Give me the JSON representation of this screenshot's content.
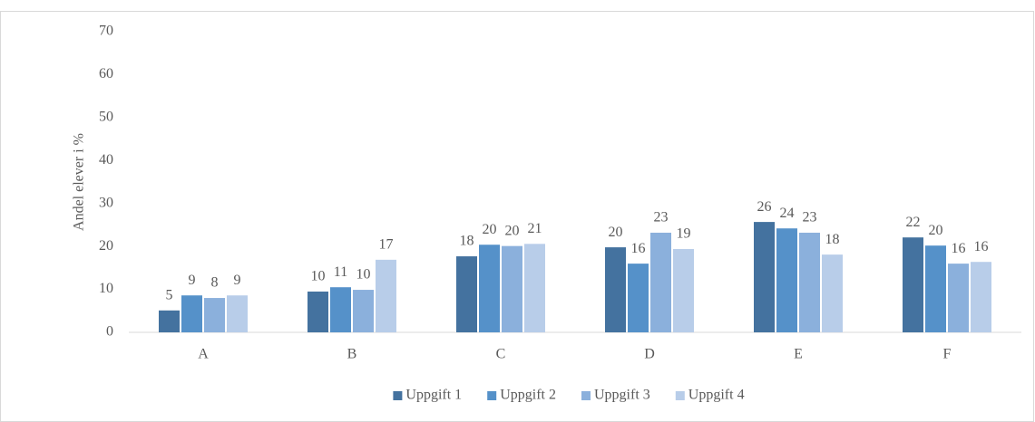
{
  "chart_data": {
    "type": "bar",
    "y_label": "Andel elever i %",
    "categories": [
      "A",
      "B",
      "C",
      "D",
      "E",
      "F"
    ],
    "series": [
      {
        "name": "Uppgift 1",
        "color": "#44729f",
        "values": [
          5.1,
          9.5,
          17.7,
          19.8,
          25.7,
          22.1
        ],
        "value_labels": [
          "5",
          "10",
          "18",
          "20",
          "26",
          "22"
        ]
      },
      {
        "name": "Uppgift 2",
        "color": "#5591c9",
        "values": [
          8.6,
          10.5,
          20.4,
          16.0,
          24.2,
          20.2
        ],
        "value_labels": [
          "9",
          "11",
          "20",
          "16",
          "24",
          "20"
        ]
      },
      {
        "name": "Uppgift 3",
        "color": "#8bb0dc",
        "values": [
          8.0,
          9.9,
          20.1,
          23.2,
          23.2,
          16.0
        ],
        "value_labels": [
          "8",
          "10",
          "20",
          "23",
          "23",
          "16"
        ]
      },
      {
        "name": "Uppgift 4",
        "color": "#b8cde9",
        "values": [
          8.6,
          16.9,
          20.6,
          19.4,
          18.1,
          16.4
        ],
        "value_labels": [
          "9",
          "17",
          "21",
          "19",
          "18",
          "16"
        ]
      }
    ],
    "ylim": [
      0,
      70
    ],
    "yticks": [
      0,
      10,
      20,
      30,
      40,
      50,
      60,
      70
    ],
    "grid": false,
    "legend": "bottom"
  }
}
